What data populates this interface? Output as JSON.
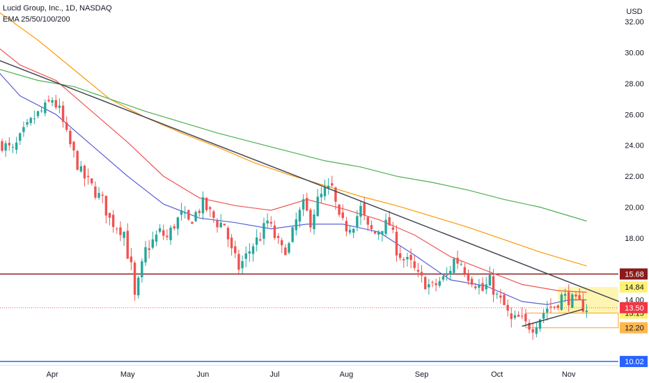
{
  "chart_data": {
    "type": "candlestick",
    "title": "Lucid Group, Inc., 1D, NASDAQ",
    "indicator_label": "EMA 25/50/100/200",
    "currency": "USD",
    "ylim": [
      9.8,
      33.4
    ],
    "y_ticks": [
      "32.00",
      "30.00",
      "28.00",
      "26.00",
      "24.00",
      "22.00",
      "20.00",
      "18.00",
      "14.00"
    ],
    "y_tick_values": [
      32,
      30,
      28,
      26,
      24,
      22,
      20,
      18,
      14
    ],
    "x_ticks": [
      "Apr",
      "May",
      "Jun",
      "Jul",
      "Aug",
      "Sep",
      "Oct",
      "Nov"
    ],
    "x_tick_index": [
      14,
      35,
      56,
      76,
      96,
      117,
      138,
      158
    ],
    "bar_count": 170,
    "up_color": "#26a69a",
    "down_color": "#ef5350",
    "candles": [],
    "ema_lines": [
      {
        "period": 25,
        "color": "#5b5fd6",
        "points": [
          [
            -2,
            29.0
          ],
          [
            5,
            27.2
          ],
          [
            15,
            26.0
          ],
          [
            25,
            24.0
          ],
          [
            35,
            22.0
          ],
          [
            45,
            20.2
          ],
          [
            55,
            19.3
          ],
          [
            65,
            19.0
          ],
          [
            75,
            18.6
          ],
          [
            85,
            18.9
          ],
          [
            95,
            18.9
          ],
          [
            105,
            18.4
          ],
          [
            115,
            16.9
          ],
          [
            125,
            15.3
          ],
          [
            135,
            14.9
          ],
          [
            145,
            13.9
          ],
          [
            152,
            13.7
          ],
          [
            158,
            14.0
          ],
          [
            163,
            14.0
          ]
        ]
      },
      {
        "period": 50,
        "color": "#ef5350",
        "points": [
          [
            -2,
            30.5
          ],
          [
            5,
            29.2
          ],
          [
            15,
            28.2
          ],
          [
            25,
            26.2
          ],
          [
            35,
            24.2
          ],
          [
            45,
            22.0
          ],
          [
            55,
            20.6
          ],
          [
            65,
            20.1
          ],
          [
            75,
            19.8
          ],
          [
            85,
            20.5
          ],
          [
            95,
            19.9
          ],
          [
            105,
            19.2
          ],
          [
            115,
            18.2
          ],
          [
            125,
            16.8
          ],
          [
            135,
            15.9
          ],
          [
            145,
            15.0
          ],
          [
            155,
            14.6
          ],
          [
            163,
            14.5
          ]
        ]
      },
      {
        "period": 100,
        "color": "#ff9800",
        "points": [
          [
            -2,
            32.8
          ],
          [
            10,
            30.8
          ],
          [
            20,
            28.9
          ],
          [
            30,
            27.0
          ],
          [
            40,
            25.8
          ],
          [
            50,
            24.8
          ],
          [
            60,
            23.9
          ],
          [
            70,
            22.9
          ],
          [
            80,
            22.1
          ],
          [
            90,
            21.4
          ],
          [
            100,
            20.7
          ],
          [
            110,
            20.1
          ],
          [
            120,
            19.4
          ],
          [
            130,
            18.7
          ],
          [
            140,
            17.9
          ],
          [
            150,
            17.1
          ],
          [
            163,
            16.2
          ]
        ]
      },
      {
        "period": 200,
        "color": "#4caf50",
        "points": [
          [
            -2,
            29.0
          ],
          [
            10,
            28.2
          ],
          [
            20,
            27.8
          ],
          [
            30,
            27.0
          ],
          [
            40,
            26.2
          ],
          [
            50,
            25.5
          ],
          [
            60,
            24.8
          ],
          [
            70,
            24.2
          ],
          [
            80,
            23.6
          ],
          [
            90,
            23.0
          ],
          [
            100,
            22.6
          ],
          [
            110,
            22.0
          ],
          [
            120,
            21.6
          ],
          [
            130,
            21.1
          ],
          [
            140,
            20.5
          ],
          [
            150,
            20.0
          ],
          [
            163,
            19.1
          ]
        ]
      }
    ],
    "trendlines": [
      {
        "name": "descending-resistance",
        "color": "#434651",
        "from": [
          -2,
          29.6
        ],
        "to": [
          172,
          13.9
        ]
      },
      {
        "name": "ascending-support",
        "color": "#434651",
        "from": [
          145,
          12.3
        ],
        "to": [
          162,
          13.4
        ]
      }
    ],
    "horizontal_lines": [
      {
        "name": "resistance-level",
        "value": 15.68,
        "label": "15.68",
        "color": "#8b1a1a",
        "label_bg": "#8b1a1a",
        "label_color": "#ffffff",
        "style": "solid"
      },
      {
        "name": "support-level",
        "value": 10.02,
        "label": "10.02",
        "color": "#2962ff",
        "label_bg": "#2962ff",
        "label_color": "#ffffff",
        "style": "solid"
      },
      {
        "name": "last-price-line",
        "value": 13.5,
        "label": "13.50",
        "color": "#ef5350",
        "label_bg": "#f23645",
        "label_color": "#ffffff",
        "style": "dotted"
      }
    ],
    "zones": [
      {
        "name": "consolidation-zone",
        "from_index": 155,
        "y_top": 14.84,
        "y_bottom": 13.15,
        "color": "#fff5b3"
      },
      {
        "name": "lower-zone",
        "from_index": 146,
        "y_top": 13.15,
        "y_bottom": 12.2,
        "color": "#ffffff",
        "border": "#f5a623"
      }
    ],
    "price_labels": [
      {
        "name": "zone-top-label",
        "value": 14.84,
        "label": "14.84",
        "bg": "#fff176",
        "color": "#131722"
      },
      {
        "name": "zone-mid-label",
        "value": 13.15,
        "label": "13.15",
        "bg": "#fff176",
        "color": "#131722"
      },
      {
        "name": "zone-low-label",
        "value": 12.2,
        "label": "12.20",
        "bg": "#ffb74d",
        "color": "#131722"
      }
    ]
  }
}
